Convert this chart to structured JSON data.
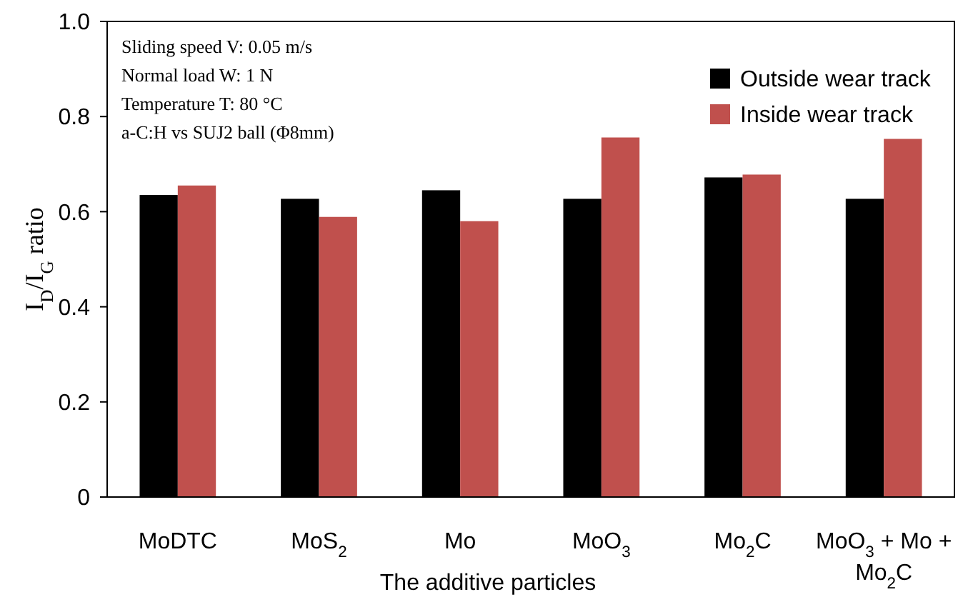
{
  "chart_data": {
    "type": "bar",
    "xlabel": "The additive particles",
    "ylabel": "I$_{D}$/I$_{G}$ ratio",
    "categories": [
      "MoDTC",
      "MoS$_{2}$",
      "Mo",
      "MoO$_{3}$",
      "Mo$_{2}$C",
      "MoO$_{3}$ + Mo + Mo$_{2}$C"
    ],
    "series": [
      {
        "name": "Outside wear track",
        "color": "#000000",
        "values": [
          0.635,
          0.627,
          0.645,
          0.627,
          0.672,
          0.627
        ]
      },
      {
        "name": "Inside wear track",
        "color": "#c0504d",
        "values": [
          0.655,
          0.589,
          0.58,
          0.756,
          0.678,
          0.753
        ]
      }
    ],
    "ylim": [
      0,
      1
    ],
    "yticks": [
      0,
      0.2,
      0.4,
      0.6,
      0.8,
      {
        "value": 1,
        "label": "1.0"
      }
    ],
    "legend": "top right",
    "annotations": [
      "Sliding speed V: 0.05 m/s",
      "Normal load W: 1 N",
      "Temperature T: 80 °C",
      "a-C:H vs SUJ2 ball (Φ8mm)"
    ]
  }
}
